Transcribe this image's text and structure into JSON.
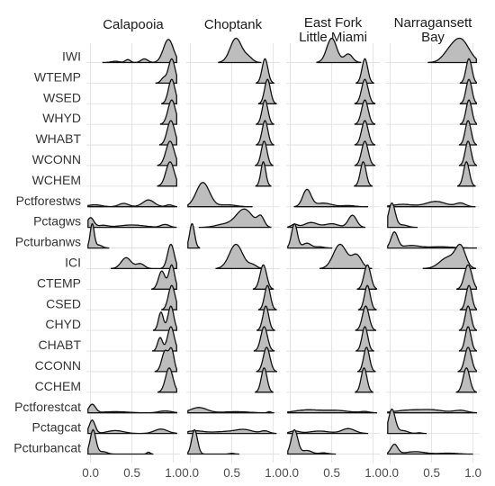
{
  "chart_data": {
    "type": "ridgeline",
    "panels": [
      "Calapooia",
      "Choptank",
      "East Fork\nLittle Miami",
      "Narragansett\nBay"
    ],
    "rows": [
      "IWI",
      "WTEMP",
      "WSED",
      "WHYD",
      "WHABT",
      "WCONN",
      "WCHEM",
      "Pctforestws",
      "Pctagws",
      "Pcturbanws",
      "ICI",
      "CTEMP",
      "CSED",
      "CHYD",
      "CHABT",
      "CCONN",
      "CCHEM",
      "Pctforestcat",
      "Pctagcat",
      "Pcturbancat"
    ],
    "x_ticks": [
      "0.0",
      "0.5",
      "1.0"
    ],
    "x_tick_values": [
      0.0,
      0.5,
      1.0
    ],
    "xlim": [
      -0.05,
      1.08
    ],
    "grid": true,
    "densities": [
      [
        [
          [
            0.3,
            0.05,
            0.05
          ],
          [
            0.45,
            0.12,
            0.03
          ],
          [
            0.65,
            0.15,
            0.04
          ],
          [
            0.94,
            0.95,
            0.06
          ]
        ],
        [
          [
            0.98,
            1.0,
            0.04
          ],
          [
            0.88,
            0.2,
            0.03
          ]
        ],
        [
          [
            0.98,
            1.0,
            0.04
          ]
        ],
        [
          [
            0.98,
            1.0,
            0.045
          ]
        ],
        [
          [
            0.97,
            1.0,
            0.045
          ]
        ],
        [
          [
            0.96,
            1.0,
            0.05
          ]
        ],
        [
          [
            0.96,
            1.0,
            0.05
          ]
        ],
        [
          [
            0.05,
            0.08,
            0.08
          ],
          [
            0.4,
            0.14,
            0.06
          ],
          [
            0.7,
            0.28,
            0.07
          ],
          [
            0.95,
            0.08,
            0.04
          ]
        ],
        [
          [
            0.0,
            0.4,
            0.04
          ],
          [
            0.15,
            0.08,
            0.06
          ],
          [
            0.5,
            0.1,
            0.15
          ],
          [
            0.9,
            0.12,
            0.05
          ]
        ],
        [
          [
            0.02,
            1.0,
            0.025
          ],
          [
            0.1,
            0.12,
            0.04
          ]
        ],
        [
          [
            0.43,
            0.45,
            0.06
          ],
          [
            0.6,
            0.2,
            0.05
          ],
          [
            0.97,
            1.0,
            0.04
          ]
        ],
        [
          [
            0.86,
            0.75,
            0.04
          ],
          [
            0.98,
            1.0,
            0.035
          ]
        ],
        [
          [
            0.98,
            1.0,
            0.04
          ]
        ],
        [
          [
            0.85,
            0.75,
            0.03
          ],
          [
            0.97,
            1.0,
            0.035
          ]
        ],
        [
          [
            0.84,
            0.55,
            0.03
          ],
          [
            0.97,
            1.0,
            0.04
          ]
        ],
        [
          [
            0.9,
            0.85,
            0.04
          ],
          [
            0.98,
            0.85,
            0.03
          ]
        ],
        [
          [
            0.95,
            1.0,
            0.045
          ]
        ],
        [
          [
            0.02,
            0.35,
            0.04
          ],
          [
            0.3,
            0.05,
            0.15
          ],
          [
            0.9,
            0.08,
            0.08
          ]
        ],
        [
          [
            0.02,
            0.55,
            0.035
          ],
          [
            0.3,
            0.12,
            0.1
          ],
          [
            0.85,
            0.18,
            0.08
          ]
        ],
        [
          [
            0.03,
            1.0,
            0.035
          ],
          [
            0.15,
            0.1,
            0.05
          ],
          [
            0.7,
            0.08,
            0.02
          ]
        ]
      ],
      [
        [
          [
            0.55,
            1.0,
            0.07
          ],
          [
            0.7,
            0.2,
            0.05
          ]
        ],
        [
          [
            0.9,
            1.0,
            0.035
          ]
        ],
        [
          [
            0.93,
            1.0,
            0.035
          ]
        ],
        [
          [
            0.9,
            1.0,
            0.035
          ]
        ],
        [
          [
            0.9,
            1.0,
            0.035
          ]
        ],
        [
          [
            0.89,
            1.0,
            0.035
          ]
        ],
        [
          [
            0.88,
            1.0,
            0.03
          ]
        ],
        [
          [
            0.15,
            1.0,
            0.08
          ],
          [
            0.45,
            0.08,
            0.1
          ]
        ],
        [
          [
            0.4,
            0.12,
            0.1
          ],
          [
            0.65,
            0.75,
            0.1
          ],
          [
            0.85,
            0.4,
            0.04
          ]
        ],
        [
          [
            0.02,
            1.0,
            0.03
          ]
        ],
        [
          [
            0.55,
            1.0,
            0.08
          ],
          [
            0.75,
            0.15,
            0.05
          ]
        ],
        [
          [
            0.88,
            1.0,
            0.04
          ]
        ],
        [
          [
            0.93,
            1.0,
            0.035
          ]
        ],
        [
          [
            0.91,
            1.0,
            0.035
          ]
        ],
        [
          [
            0.89,
            1.0,
            0.04
          ]
        ],
        [
          [
            0.92,
            1.0,
            0.04
          ]
        ],
        [
          [
            0.89,
            1.0,
            0.035
          ]
        ],
        [
          [
            0.1,
            0.22,
            0.1
          ],
          [
            0.55,
            0.05,
            0.15
          ],
          [
            0.95,
            0.05,
            0.02
          ]
        ],
        [
          [
            0.05,
            0.1,
            0.1
          ],
          [
            0.45,
            0.08,
            0.2
          ],
          [
            0.65,
            0.12,
            0.1
          ],
          [
            0.9,
            0.1,
            0.05
          ]
        ],
        [
          [
            0.05,
            1.0,
            0.035
          ],
          [
            0.5,
            0.03,
            0.03
          ]
        ]
      ],
      [
        [
          [
            0.5,
            1.0,
            0.06
          ],
          [
            0.7,
            0.35,
            0.05
          ]
        ],
        [
          [
            0.9,
            1.0,
            0.035
          ]
        ],
        [
          [
            0.9,
            1.0,
            0.04
          ]
        ],
        [
          [
            0.9,
            1.0,
            0.04
          ]
        ],
        [
          [
            0.9,
            1.0,
            0.04
          ]
        ],
        [
          [
            0.9,
            1.0,
            0.04
          ]
        ],
        [
          [
            0.88,
            1.0,
            0.035
          ]
        ],
        [
          [
            0.2,
            0.7,
            0.05
          ],
          [
            0.4,
            0.15,
            0.1
          ],
          [
            0.7,
            0.05,
            0.08
          ]
        ],
        [
          [
            0.05,
            0.12,
            0.04
          ],
          [
            0.25,
            0.2,
            0.08
          ],
          [
            0.5,
            0.15,
            0.08
          ],
          [
            0.75,
            0.5,
            0.05
          ]
        ],
        [
          [
            0.05,
            1.0,
            0.035
          ],
          [
            0.2,
            0.2,
            0.05
          ],
          [
            0.35,
            0.05,
            0.05
          ]
        ],
        [
          [
            0.6,
            1.0,
            0.08
          ],
          [
            0.8,
            0.55,
            0.06
          ]
        ],
        [
          [
            0.93,
            1.0,
            0.04
          ]
        ],
        [
          [
            0.93,
            1.0,
            0.035
          ]
        ],
        [
          [
            0.91,
            1.0,
            0.04
          ]
        ],
        [
          [
            0.9,
            1.0,
            0.035
          ]
        ],
        [
          [
            0.92,
            1.0,
            0.035
          ]
        ],
        [
          [
            0.89,
            1.0,
            0.035
          ]
        ],
        [
          [
            0.2,
            0.12,
            0.15
          ],
          [
            0.55,
            0.1,
            0.15
          ],
          [
            0.9,
            0.05,
            0.06
          ]
        ],
        [
          [
            0.05,
            0.1,
            0.06
          ],
          [
            0.35,
            0.1,
            0.12
          ],
          [
            0.7,
            0.2,
            0.08
          ]
        ],
        [
          [
            0.05,
            1.0,
            0.04
          ],
          [
            0.2,
            0.15,
            0.06
          ],
          [
            0.4,
            0.05,
            0.05
          ]
        ]
      ],
      [
        [
          [
            0.85,
            1.0,
            0.1
          ],
          [
            0.7,
            0.3,
            0.08
          ]
        ],
        [
          [
            0.95,
            1.0,
            0.035
          ]
        ],
        [
          [
            0.95,
            1.0,
            0.035
          ]
        ],
        [
          [
            0.95,
            1.0,
            0.035
          ]
        ],
        [
          [
            0.94,
            1.0,
            0.035
          ]
        ],
        [
          [
            0.94,
            1.0,
            0.035
          ]
        ],
        [
          [
            0.92,
            1.0,
            0.035
          ]
        ],
        [
          [
            0.15,
            0.1,
            0.12
          ],
          [
            0.55,
            0.22,
            0.12
          ],
          [
            0.85,
            0.15,
            0.06
          ]
        ],
        [
          [
            0.02,
            1.0,
            0.04
          ],
          [
            0.15,
            0.1,
            0.06
          ]
        ],
        [
          [
            0.05,
            0.65,
            0.04
          ],
          [
            0.25,
            0.1,
            0.1
          ],
          [
            0.6,
            0.05,
            0.15
          ]
        ],
        [
          [
            0.7,
            0.5,
            0.1
          ],
          [
            0.85,
            0.9,
            0.06
          ]
        ],
        [
          [
            0.94,
            1.0,
            0.045
          ]
        ],
        [
          [
            0.95,
            1.0,
            0.035
          ]
        ],
        [
          [
            0.94,
            1.0,
            0.035
          ]
        ],
        [
          [
            0.94,
            1.0,
            0.035
          ]
        ],
        [
          [
            0.94,
            1.0,
            0.04
          ]
        ],
        [
          [
            0.92,
            1.0,
            0.04
          ]
        ],
        [
          [
            0.2,
            0.1,
            0.15
          ],
          [
            0.5,
            0.12,
            0.15
          ],
          [
            0.85,
            0.1,
            0.08
          ]
        ],
        [
          [
            0.02,
            1.0,
            0.04
          ],
          [
            0.15,
            0.12,
            0.06
          ],
          [
            0.35,
            0.03,
            0.03
          ]
        ],
        [
          [
            0.05,
            0.4,
            0.04
          ],
          [
            0.3,
            0.1,
            0.12
          ],
          [
            0.7,
            0.04,
            0.1
          ]
        ]
      ]
    ]
  }
}
